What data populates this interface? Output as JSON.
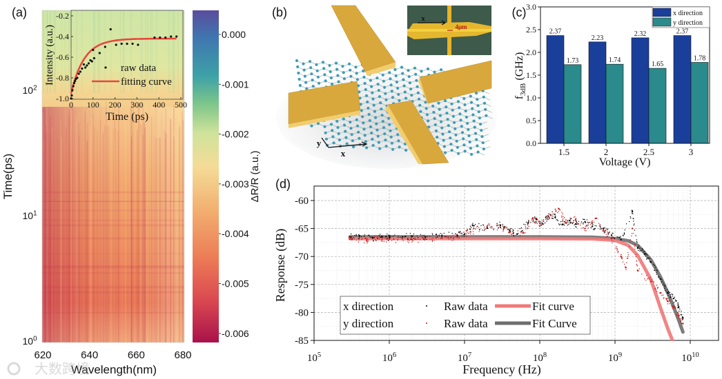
{
  "panel_labels": {
    "a": "(a)",
    "b": "(b)",
    "c": "(c)",
    "d": "(d)"
  },
  "watermark": "大数跨境",
  "chart_data": [
    {
      "id": "a",
      "type": "heatmap",
      "xlabel": "Wavelength(nm)",
      "ylabel": "Time(ps)",
      "xlim": [
        620,
        680
      ],
      "x_ticks": [
        "620",
        "640",
        "660",
        "680"
      ],
      "y_scale": "log",
      "y_ticks": [
        {
          "base": "10",
          "exp": "0"
        },
        {
          "base": "10",
          "exp": "1"
        },
        {
          "base": "10",
          "exp": "2"
        }
      ],
      "colorbar": {
        "label": "ΔR/R (a.u.)",
        "range": [
          -0.0062,
          0.0005
        ],
        "ticks": [
          "0.000",
          "-0.001",
          "-0.002",
          "-0.003",
          "-0.004",
          "-0.005",
          "-0.006"
        ],
        "tick_values": [
          0,
          -0.001,
          -0.002,
          -0.003,
          -0.004,
          -0.005,
          -0.006
        ]
      },
      "inset": {
        "type": "scatter+line",
        "xlabel": "Time (ps)",
        "ylabel": "Intensity (a.u.)",
        "xlim": [
          0,
          500
        ],
        "ylim": [
          -1.0,
          -0.2
        ],
        "x_ticks": [
          "0",
          "100",
          "200",
          "300",
          "400",
          "500"
        ],
        "y_ticks": [
          "-0.2",
          "-0.4",
          "-0.6",
          "-0.8",
          "-1.0"
        ],
        "legend": {
          "raw": "raw data",
          "fit": "fitting curve"
        },
        "raw_data": [
          [
            0,
            -1.0
          ],
          [
            3,
            -0.97
          ],
          [
            6,
            -0.92
          ],
          [
            10,
            -0.88
          ],
          [
            14,
            -0.85
          ],
          [
            18,
            -0.83
          ],
          [
            22,
            -0.81
          ],
          [
            28,
            -0.8
          ],
          [
            35,
            -0.76
          ],
          [
            42,
            -0.74
          ],
          [
            50,
            -0.71
          ],
          [
            58,
            -0.67
          ],
          [
            65,
            -0.7
          ],
          [
            72,
            -0.68
          ],
          [
            80,
            -0.66
          ],
          [
            88,
            -0.63
          ],
          [
            95,
            -0.64
          ],
          [
            100,
            -0.53
          ],
          [
            105,
            -0.61
          ],
          [
            130,
            -0.56
          ],
          [
            155,
            -0.5
          ],
          [
            180,
            -0.33
          ],
          [
            205,
            -0.48
          ],
          [
            230,
            -0.47
          ],
          [
            255,
            -0.47
          ],
          [
            280,
            -0.47
          ],
          [
            305,
            -0.48
          ],
          [
            380,
            -0.41
          ],
          [
            405,
            -0.41
          ],
          [
            430,
            -0.41
          ],
          [
            455,
            -0.4
          ],
          [
            480,
            -0.4
          ]
        ],
        "fit": {
          "offset": -0.42,
          "amplitude": -0.53,
          "tau_ps": 60
        }
      }
    },
    {
      "id": "b",
      "type": "illustration",
      "inset_labels": {
        "x": "x",
        "gap": "4μm"
      },
      "axis_labels": {
        "x": "x",
        "y": "y"
      }
    },
    {
      "id": "c",
      "type": "bar",
      "xlabel": "Voltage (V)",
      "ylabel_main": "f",
      "ylabel_sub": "3dB",
      "ylabel_unit": " (GHz)",
      "ylim": [
        0,
        3.0
      ],
      "y_ticks": [
        "0.0",
        "0.5",
        "1.0",
        "1.5",
        "2.0",
        "2.5",
        "3.0"
      ],
      "categories": [
        "1.5",
        "2",
        "2.5",
        "3"
      ],
      "series": [
        {
          "name": "x direction",
          "color": "#1a3f9a",
          "values": [
            2.37,
            2.23,
            2.32,
            2.37
          ],
          "labels": [
            "2.37",
            "2.23",
            "2.32",
            "2.37"
          ]
        },
        {
          "name": "y direction",
          "color": "#2a8a8c",
          "values": [
            1.73,
            1.74,
            1.65,
            1.78
          ],
          "labels": [
            "1.73",
            "1.74",
            "1.65",
            "1.78"
          ]
        }
      ],
      "legend_position": "top-right"
    },
    {
      "id": "d",
      "type": "line+scatter",
      "xlabel": "Frequency (Hz)",
      "ylabel": "Response (dB)",
      "x_scale": "log",
      "xlim": [
        100000.0,
        23000000000.0
      ],
      "ylim": [
        -85,
        -57.3
      ],
      "x_ticks": [
        {
          "base": "10",
          "exp": "5"
        },
        {
          "base": "10",
          "exp": "6"
        },
        {
          "base": "10",
          "exp": "7"
        },
        {
          "base": "10",
          "exp": "8"
        },
        {
          "base": "10",
          "exp": "9"
        },
        {
          "base": "10",
          "exp": "10"
        }
      ],
      "y_ticks": [
        "-60",
        "-65",
        "-70",
        "-75",
        "-80",
        "-85"
      ],
      "grid": true,
      "legend": {
        "rows": [
          {
            "direction": "x direction",
            "raw": "Raw data",
            "fit": "Fit curve"
          },
          {
            "direction": "y direction",
            "raw": "Raw data",
            "fit": "Fit Curve"
          }
        ],
        "position": "bottom-left"
      },
      "series": [
        {
          "name": "x direction raw data",
          "color": "#000000",
          "points": [
            [
              300000.0,
              -66.5
            ],
            [
              400000.0,
              -66.3
            ],
            [
              600000.0,
              -66.7
            ],
            [
              800000.0,
              -66.4
            ],
            [
              1000000.0,
              -66.6
            ],
            [
              1500000.0,
              -66.5
            ],
            [
              2000000.0,
              -66.4
            ],
            [
              3000000.0,
              -66.5
            ],
            [
              5000000.0,
              -66.3
            ],
            [
              8000000.0,
              -66.2
            ],
            [
              10000000.0,
              -66.0
            ],
            [
              13000000.0,
              -64.5
            ],
            [
              20000000.0,
              -64.9
            ],
            [
              30000000.0,
              -64.4
            ],
            [
              40000000.0,
              -65.4
            ],
            [
              50000000.0,
              -66.0
            ],
            [
              70000000.0,
              -64.0
            ],
            [
              90000000.0,
              -63.4
            ],
            [
              110000000.0,
              -64.2
            ],
            [
              130000000.0,
              -62.8
            ],
            [
              160000000.0,
              -63.0
            ],
            [
              200000000.0,
              -64.3
            ],
            [
              250000000.0,
              -63.6
            ],
            [
              300000000.0,
              -64.2
            ],
            [
              400000000.0,
              -63.8
            ],
            [
              500000000.0,
              -64.6
            ],
            [
              700000000.0,
              -65.0
            ],
            [
              900000000.0,
              -66.2
            ],
            [
              1200000000.0,
              -67.0
            ],
            [
              1700000000.0,
              -62.0
            ],
            [
              2000000000.0,
              -68.5
            ],
            [
              2500000000.0,
              -69.5
            ],
            [
              3000000000.0,
              -71.0
            ],
            [
              4000000000.0,
              -74.0
            ],
            [
              5000000000.0,
              -76.5
            ],
            [
              6000000000.0,
              -77.5
            ],
            [
              7000000000.0,
              -79.0
            ],
            [
              8000000000.0,
              -81.0
            ]
          ]
        },
        {
          "name": "y direction raw data",
          "color": "#c81818",
          "points": [
            [
              300000.0,
              -66.9
            ],
            [
              500000.0,
              -67.2
            ],
            [
              700000.0,
              -66.8
            ],
            [
              1000000.0,
              -66.9
            ],
            [
              2000000.0,
              -67.0
            ],
            [
              3000000.0,
              -66.8
            ],
            [
              5000000.0,
              -66.7
            ],
            [
              8000000.0,
              -66.5
            ],
            [
              12000000.0,
              -65.6
            ],
            [
              20000000.0,
              -64.6
            ],
            [
              30000000.0,
              -64.8
            ],
            [
              40000000.0,
              -65.6
            ],
            [
              60000000.0,
              -65.8
            ],
            [
              80000000.0,
              -63.2
            ],
            [
              100000000.0,
              -64.1
            ],
            [
              140000000.0,
              -62.6
            ],
            [
              180000000.0,
              -61.5
            ],
            [
              220000000.0,
              -64.0
            ],
            [
              300000000.0,
              -63.4
            ],
            [
              400000000.0,
              -65.0
            ],
            [
              550000000.0,
              -63.2
            ],
            [
              700000000.0,
              -65.3
            ],
            [
              900000000.0,
              -66.8
            ],
            [
              1200000000.0,
              -70.0
            ],
            [
              1400000000.0,
              -72.0
            ],
            [
              1700000000.0,
              -65.0
            ],
            [
              2000000000.0,
              -72.5
            ],
            [
              3000000000.0,
              -74.5
            ],
            [
              4000000000.0,
              -76.5
            ],
            [
              5000000000.0,
              -78.0
            ],
            [
              6000000000.0,
              -79.0
            ],
            [
              7000000000.0,
              -80.5
            ],
            [
              8000000000.0,
              -82.0
            ]
          ]
        },
        {
          "name": "x direction fit curve",
          "color": "#f07878",
          "points": [
            [
              300000.0,
              -66.8
            ],
            [
              10000000.0,
              -66.8
            ],
            [
              100000000.0,
              -66.8
            ],
            [
              500000000.0,
              -66.85
            ],
            [
              1000000000.0,
              -67.1
            ],
            [
              1500000000.0,
              -68.0
            ],
            [
              2000000000.0,
              -69.8
            ],
            [
              3000000000.0,
              -74.1
            ],
            [
              4000000000.0,
              -79.1
            ],
            [
              5000000000.0,
              -82.8
            ],
            [
              5800000000.0,
              -85.0
            ]
          ]
        },
        {
          "name": "y direction fit curve",
          "color": "#6e6e6e",
          "points": [
            [
              300000.0,
              -66.5
            ],
            [
              10000000.0,
              -66.5
            ],
            [
              100000000.0,
              -66.5
            ],
            [
              500000000.0,
              -66.55
            ],
            [
              1000000000.0,
              -66.8
            ],
            [
              1500000000.0,
              -67.2
            ],
            [
              2000000000.0,
              -68.0
            ],
            [
              3000000000.0,
              -70.6
            ],
            [
              4000000000.0,
              -73.6
            ],
            [
              5000000000.0,
              -76.4
            ],
            [
              6000000000.0,
              -79.0
            ],
            [
              7000000000.0,
              -81.3
            ],
            [
              8000000000.0,
              -83.5
            ]
          ]
        }
      ]
    }
  ]
}
